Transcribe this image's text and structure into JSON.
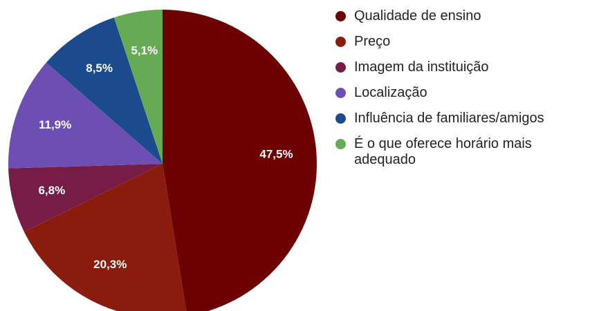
{
  "chart_data": {
    "type": "pie",
    "categories": [
      "Qualidade de ensino",
      "Preço",
      "Imagem da instituição",
      "Localização",
      "Influência de familiares/amigos",
      "É o que oferece horário mais adequado"
    ],
    "values": [
      47.5,
      20.3,
      6.8,
      11.9,
      8.5,
      5.1
    ],
    "value_labels": [
      "47,5%",
      "20,3%",
      "6,8%",
      "11,9%",
      "8,5%",
      "5,1%"
    ],
    "colors": [
      "#6d0000",
      "#8a1c0d",
      "#771b47",
      "#6d4fb3",
      "#1b4b8c",
      "#67aa55"
    ],
    "legend": "right"
  }
}
